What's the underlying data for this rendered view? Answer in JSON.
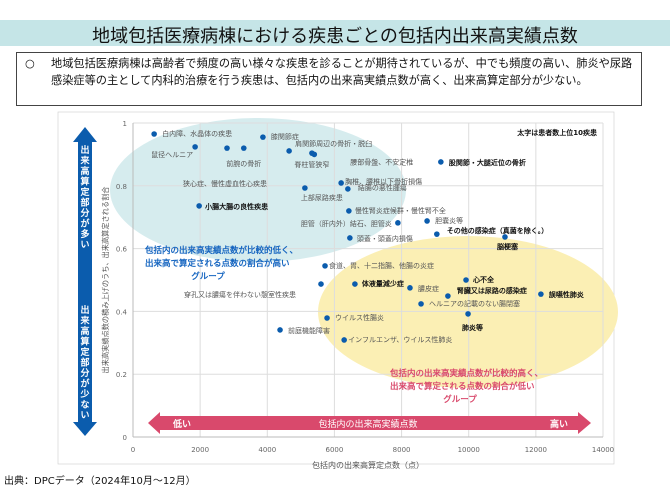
{
  "header": {
    "title": "地域包括医療病棟における疾患ごとの包括内出来高実績点数"
  },
  "summary": {
    "bullet": "○",
    "text": "地域包括医療病棟は高齢者で頻度の高い様々な疾患を診ることが期待されているが、中でも頻度の高い、肺炎や尿路感染症等の主として内科的治療を行う疾患は、包括内の出来高実績点数が高く、出来高算定部分が少ない。"
  },
  "source": "出典：DPCデータ（2024年10月～12月）",
  "colors": {
    "point": "#0b5cad",
    "low_group_ellipse": "#d6ecee",
    "high_group_ellipse": "#fbefb4",
    "blue_arrow": "#0b5cad",
    "red_arrow": "#d9496c",
    "blue_text": "#1565c0",
    "red_text": "#d9496c"
  },
  "chart_data": {
    "type": "scatter",
    "xlabel": "包括内の出来高算定点数（点）",
    "ylabel": "出来高実績点数の積み上げのうち、出来高算定される割合",
    "xlim": [
      0,
      14000
    ],
    "ylim": [
      0,
      1
    ],
    "xticks": [
      "0",
      "2000",
      "4000",
      "6000",
      "8000",
      "10000",
      "12000",
      "14000"
    ],
    "yticks": [
      "0",
      "0.2",
      "0.4",
      "0.6",
      "0.8",
      "1"
    ],
    "grid": true,
    "note": "太字は患者数上位10疾患",
    "points": [
      {
        "label": "白内障、水晶体の疾患",
        "x": 630,
        "y": 0.965,
        "bold": false
      },
      {
        "label": "鼠径ヘルニア",
        "x": 1850,
        "y": 0.924,
        "bold": false
      },
      {
        "label": "狭心症、慢性虚血性心疾患",
        "x": 2800,
        "y": 0.92,
        "bold": false
      },
      {
        "label": "前腕の骨折",
        "x": 3300,
        "y": 0.92,
        "bold": false
      },
      {
        "label": "膝関節症",
        "x": 3870,
        "y": 0.955,
        "bold": false
      },
      {
        "label": "肩関節周辺の骨折・脱臼",
        "x": 4650,
        "y": 0.911,
        "bold": false
      },
      {
        "label": "脊柱管狭窄",
        "x": 5330,
        "y": 0.904,
        "bold": false
      },
      {
        "label": "腰部骨盤、不安定椎",
        "x": 5400,
        "y": 0.9,
        "bold": false
      },
      {
        "label": "股関節・大腿近位の骨折",
        "x": 9170,
        "y": 0.876,
        "bold": true
      },
      {
        "label": "上部尿路疾患",
        "x": 5120,
        "y": 0.793,
        "bold": false
      },
      {
        "label": "胸椎、腰椎以下骨折損傷",
        "x": 6200,
        "y": 0.809,
        "bold": false
      },
      {
        "label": "結腸の悪性腫瘍",
        "x": 6400,
        "y": 0.79,
        "bold": false
      },
      {
        "label": "小腸大腸の良性疾患",
        "x": 1970,
        "y": 0.736,
        "bold": true
      },
      {
        "label": "慢性腎炎症候群・慢性腎不全",
        "x": 6430,
        "y": 0.72,
        "bold": false
      },
      {
        "label": "胆管（肝内外）結石、胆管炎",
        "x": 7890,
        "y": 0.682,
        "bold": false
      },
      {
        "label": "胆嚢炎等",
        "x": 8760,
        "y": 0.688,
        "bold": false
      },
      {
        "label": "頭蓋・頭蓋内損傷",
        "x": 6460,
        "y": 0.634,
        "bold": false
      },
      {
        "label": "その他の感染症（真菌を除く。）",
        "x": 9050,
        "y": 0.646,
        "bold": true
      },
      {
        "label": "脳梗塞",
        "x": 11080,
        "y": 0.637,
        "bold": true
      },
      {
        "label": "食道、胃、十二指腸、他腸の炎症",
        "x": 5720,
        "y": 0.545,
        "bold": false
      },
      {
        "label": "穿孔又は膿瘍を伴わない憩室性疾患",
        "x": 5600,
        "y": 0.487,
        "bold": false
      },
      {
        "label": "体液量減少症",
        "x": 6610,
        "y": 0.487,
        "bold": true
      },
      {
        "label": "膿皮症",
        "x": 8250,
        "y": 0.475,
        "bold": false
      },
      {
        "label": "心不全",
        "x": 9920,
        "y": 0.5,
        "bold": true
      },
      {
        "label": "腎臓又は尿路の感染症",
        "x": 9380,
        "y": 0.449,
        "bold": true
      },
      {
        "label": "誤嚥性肺炎",
        "x": 12150,
        "y": 0.455,
        "bold": true
      },
      {
        "label": "ヘルニアの記載のない腸閉塞",
        "x": 8580,
        "y": 0.424,
        "bold": false
      },
      {
        "label": "肺炎等",
        "x": 9980,
        "y": 0.392,
        "bold": true
      },
      {
        "label": "ウイルス性腸炎",
        "x": 5780,
        "y": 0.379,
        "bold": false
      },
      {
        "label": "前庭機能障害",
        "x": 4380,
        "y": 0.341,
        "bold": false
      },
      {
        "label": "インフルエンザ、ウイルス性肺炎",
        "x": 6290,
        "y": 0.309,
        "bold": false
      }
    ],
    "annotations": {
      "low_group": [
        "包括内の出来高実績点数が比較的低く、",
        "出来高で算定される点数の割合が高い",
        "グループ"
      ],
      "high_group": [
        "包括内の出来高実績点数が比較的高く、",
        "出来高で算定される点数の割合が低い",
        "グループ"
      ],
      "x_arrow": {
        "label": "包括内の出来高実績点数",
        "low": "低い",
        "high": "高い"
      },
      "y_arrow": {
        "top": "出来高算定部分が多い",
        "bottom": "出来高算定部分が少ない"
      }
    }
  }
}
